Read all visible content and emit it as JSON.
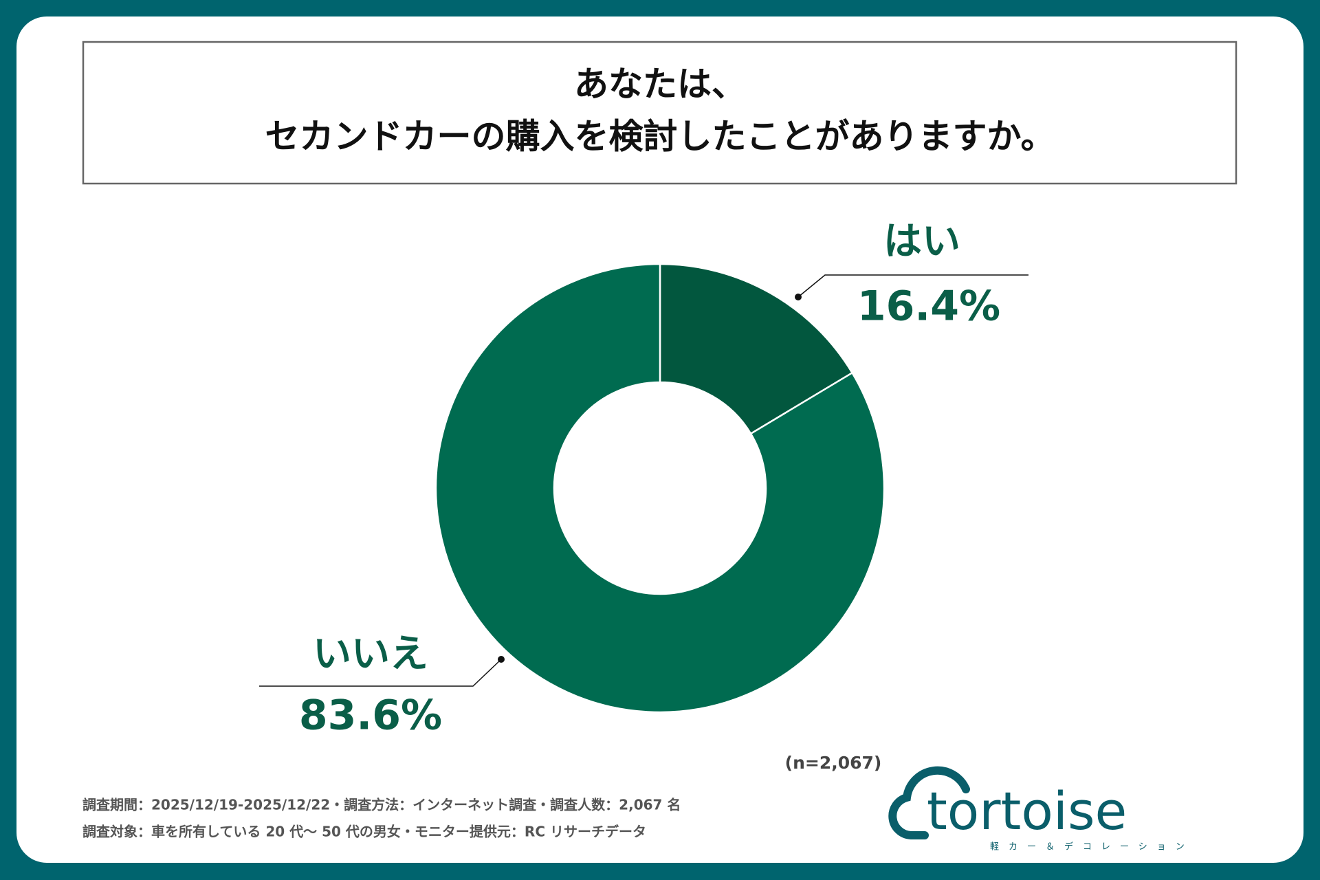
{
  "chart_data": {
    "type": "donut",
    "title": [
      "あなたは、",
      "セカンドカーの購入を検討したことがありますか。"
    ],
    "categories": [
      "はい",
      "いいえ"
    ],
    "values": [
      16.4,
      83.6
    ],
    "value_labels": [
      "16.4%",
      "83.6%"
    ],
    "colors": [
      "#02573e",
      "#006b50"
    ],
    "sample_size": "(n=2,067)"
  },
  "footer": [
    "調査期間：2025/12/19-2025/12/22・調査方法：インターネット調査・調査人数：2,067 名",
    "調査対象：車を所有している 20 代〜 50 代の男女・モニター提供元：RC リサーチデータ"
  ],
  "logo": {
    "name": "tortoise",
    "tagline": "軽カー＆デコレーション"
  }
}
